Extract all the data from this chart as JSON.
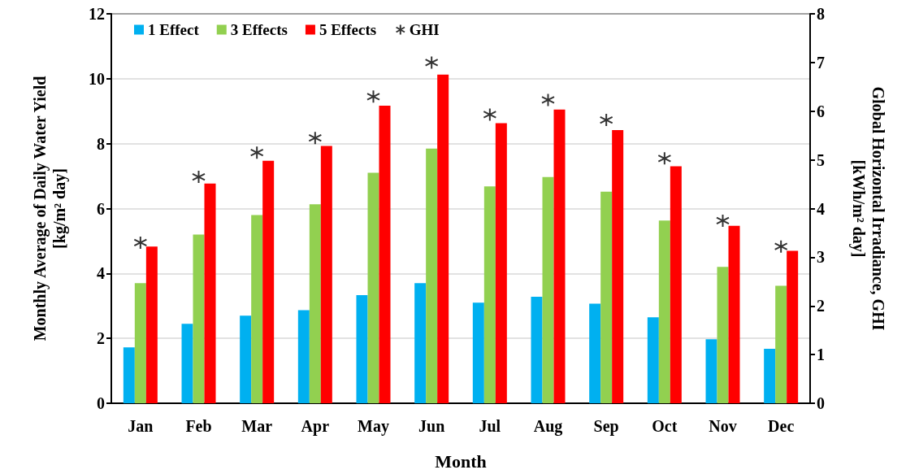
{
  "chart_data": {
    "type": "bar",
    "xlabel": "Month",
    "ylabel": "Monthly Average of Daily Water Yield\n[kg/m² day]",
    "y2label": "Global Horizontal Irradiance, GHI\n[kWh/m² day]",
    "categories": [
      "Jan",
      "Feb",
      "Mar",
      "Apr",
      "May",
      "Jun",
      "Jul",
      "Aug",
      "Sep",
      "Oct",
      "Nov",
      "Dec"
    ],
    "series": [
      {
        "name": "1 Effect",
        "color": "#00b0f0",
        "values": [
          1.72,
          2.45,
          2.7,
          2.87,
          3.33,
          3.7,
          3.1,
          3.28,
          3.07,
          2.65,
          1.97,
          1.68
        ]
      },
      {
        "name": "3 Effects",
        "color": "#92d050",
        "values": [
          3.7,
          5.2,
          5.8,
          6.13,
          7.1,
          7.85,
          6.68,
          6.97,
          6.52,
          5.63,
          4.2,
          3.62
        ]
      },
      {
        "name": "5 Effects",
        "color": "#ff0000",
        "values": [
          4.83,
          6.77,
          7.47,
          7.93,
          9.17,
          10.13,
          8.63,
          9.05,
          8.42,
          7.3,
          5.47,
          4.7
        ]
      },
      {
        "name": "GHI",
        "type": "scatter",
        "axis": "y2",
        "color": "#000000",
        "marker": "cross",
        "values": [
          3.3,
          4.65,
          5.15,
          5.45,
          6.3,
          7.0,
          5.93,
          6.23,
          5.82,
          5.03,
          3.75,
          3.22
        ]
      }
    ],
    "ylim": [
      0,
      12
    ],
    "yticks": [
      0,
      2,
      4,
      6,
      8,
      10,
      12
    ],
    "y2lim": [
      0,
      8
    ],
    "y2ticks": [
      0,
      1,
      2,
      3,
      4,
      5,
      6,
      7,
      8
    ],
    "grid": "y",
    "legend": "top left"
  }
}
